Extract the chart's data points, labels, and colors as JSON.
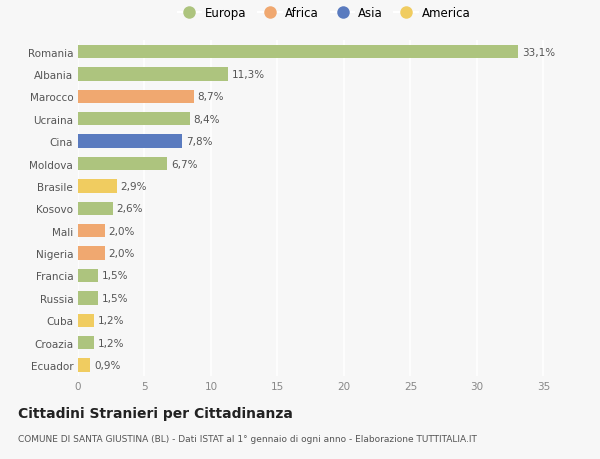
{
  "countries": [
    "Romania",
    "Albania",
    "Marocco",
    "Ucraina",
    "Cina",
    "Moldova",
    "Brasile",
    "Kosovo",
    "Mali",
    "Nigeria",
    "Francia",
    "Russia",
    "Cuba",
    "Croazia",
    "Ecuador"
  ],
  "values": [
    33.1,
    11.3,
    8.7,
    8.4,
    7.8,
    6.7,
    2.9,
    2.6,
    2.0,
    2.0,
    1.5,
    1.5,
    1.2,
    1.2,
    0.9
  ],
  "continents": [
    "Europa",
    "Europa",
    "Africa",
    "Europa",
    "Asia",
    "Europa",
    "America",
    "Europa",
    "Africa",
    "Africa",
    "Europa",
    "Europa",
    "America",
    "Europa",
    "America"
  ],
  "labels": [
    "33,1%",
    "11,3%",
    "8,7%",
    "8,4%",
    "7,8%",
    "6,7%",
    "2,9%",
    "2,6%",
    "2,0%",
    "2,0%",
    "1,5%",
    "1,5%",
    "1,2%",
    "1,2%",
    "0,9%"
  ],
  "continent_colors": {
    "Europa": "#adc47e",
    "Africa": "#f0a870",
    "Asia": "#5a7bbf",
    "America": "#f0cc60"
  },
  "legend_order": [
    "Europa",
    "Africa",
    "Asia",
    "America"
  ],
  "background_color": "#f7f7f7",
  "plot_bg_color": "#f7f7f7",
  "title": "Cittadini Stranieri per Cittadinanza",
  "subtitle": "COMUNE DI SANTA GIUSTINA (BL) - Dati ISTAT al 1° gennaio di ogni anno - Elaborazione TUTTITALIA.IT",
  "xlim": [
    0,
    37
  ],
  "xticks": [
    0,
    5,
    10,
    15,
    20,
    25,
    30,
    35
  ],
  "bar_height": 0.6,
  "label_fontsize": 7.5,
  "tick_fontsize": 7.5,
  "ytick_fontsize": 7.5,
  "title_fontsize": 10,
  "subtitle_fontsize": 6.5,
  "legend_fontsize": 8.5
}
